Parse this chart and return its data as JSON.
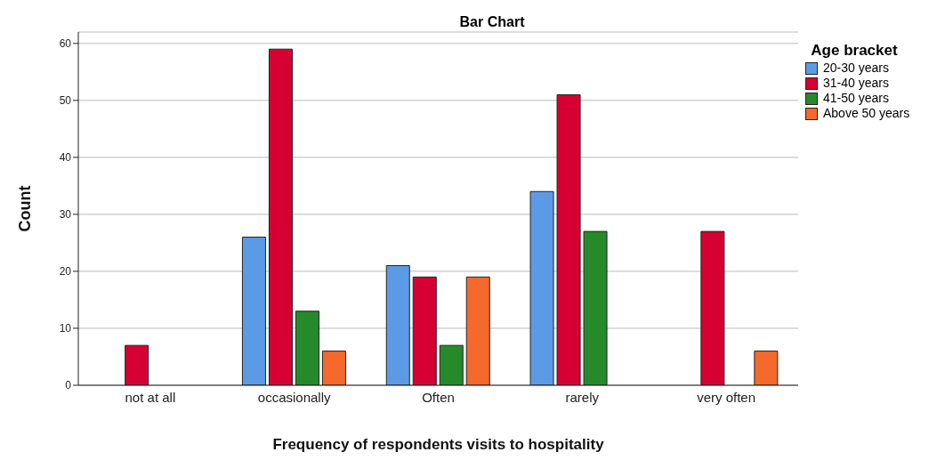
{
  "chart_data": {
    "type": "bar",
    "title": "Bar Chart",
    "xlabel": "Frequency of respondents visits to hospitality",
    "ylabel": "Count",
    "legend_title": "Age bracket",
    "categories": [
      "not at all",
      "occasionally",
      "Often",
      "rarely",
      "very often"
    ],
    "series": [
      {
        "name": "20-30 years",
        "color": "#5b9be6",
        "values": [
          null,
          26,
          21,
          34,
          null
        ]
      },
      {
        "name": "31-40 years",
        "color": "#d70033",
        "values": [
          7,
          59,
          19,
          51,
          27
        ]
      },
      {
        "name": "41-50 years",
        "color": "#268a2a",
        "values": [
          null,
          13,
          7,
          27,
          null
        ]
      },
      {
        "name": "Above 50 years",
        "color": "#f5692c",
        "values": [
          null,
          6,
          19,
          null,
          6
        ]
      }
    ],
    "ylim": [
      0,
      62
    ],
    "yticks": [
      0,
      10,
      20,
      30,
      40,
      50,
      60
    ],
    "grid": "y",
    "legend": "top right"
  }
}
